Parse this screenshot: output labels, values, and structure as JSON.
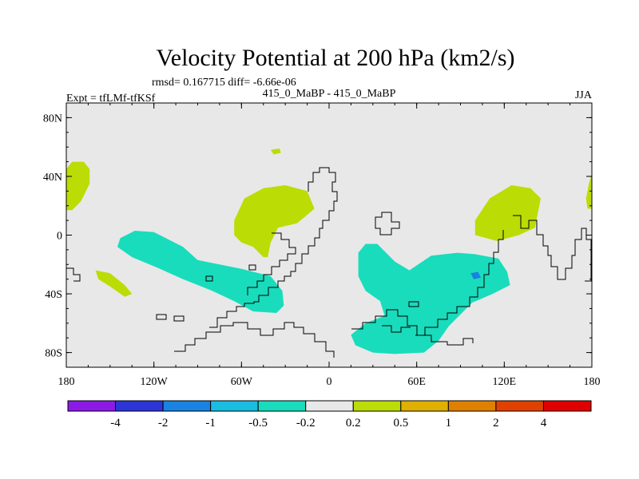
{
  "chart_data": {
    "type": "heatmap",
    "title": "Velocity Potential at 200 hPa (km2/s)",
    "stats": "rmsd= 0.167715  diff= -6.66e-06",
    "left_label": "Expt = tfLMf-tfKSf",
    "center_label": "415_0_MaBP - 415_0_MaBP",
    "right_label": "JJA",
    "x_range": [
      -180,
      180
    ],
    "y_range": [
      -90,
      90
    ],
    "x_ticks": [
      {
        "value": -180,
        "label": "180"
      },
      {
        "value": -120,
        "label": "120W"
      },
      {
        "value": -60,
        "label": "60W"
      },
      {
        "value": 0,
        "label": "0"
      },
      {
        "value": 60,
        "label": "60E"
      },
      {
        "value": 120,
        "label": "120E"
      },
      {
        "value": 180,
        "label": "180"
      }
    ],
    "y_ticks": [
      {
        "value": 80,
        "label": "80N"
      },
      {
        "value": 40,
        "label": "40N"
      },
      {
        "value": 0,
        "label": "0"
      },
      {
        "value": -40,
        "label": "40S"
      },
      {
        "value": -80,
        "label": "80S"
      }
    ],
    "background_color": "#e8e8e8",
    "colorbar": {
      "colors": [
        "#8b1ae6",
        "#2d34d8",
        "#1a82e0",
        "#19bde0",
        "#19dcbc",
        "#e8e8e8",
        "#bcdc06",
        "#e0b000",
        "#e08000",
        "#e04000",
        "#e00000"
      ],
      "labels": [
        "-4",
        "-2",
        "-1",
        "-0.5",
        "-0.2",
        "0.2",
        "0.5",
        "1",
        "2",
        "4"
      ]
    },
    "regions": [
      {
        "name": "positive-west-pacific",
        "level": "0.2 to 0.5",
        "color": "#bcdc06",
        "points": [
          [
            -180,
            45
          ],
          [
            -176,
            50
          ],
          [
            -168,
            50
          ],
          [
            -164,
            45
          ],
          [
            -164,
            35
          ],
          [
            -170,
            23
          ],
          [
            -176,
            17
          ],
          [
            -180,
            17
          ]
        ]
      },
      {
        "name": "positive-atlantic",
        "level": "0.2 to 0.5",
        "color": "#bcdc06",
        "points": [
          [
            -65,
            10
          ],
          [
            -58,
            25
          ],
          [
            -45,
            32
          ],
          [
            -30,
            34
          ],
          [
            -15,
            30
          ],
          [
            -10,
            18
          ],
          [
            -22,
            8
          ],
          [
            -35,
            5
          ],
          [
            -40,
            -5
          ],
          [
            -42,
            -15
          ],
          [
            -45,
            -15
          ],
          [
            -52,
            -8
          ],
          [
            -60,
            -5
          ],
          [
            -65,
            0
          ]
        ]
      },
      {
        "name": "positive-asia",
        "level": "0.2 to 0.5",
        "color": "#bcdc06",
        "points": [
          [
            100,
            10
          ],
          [
            110,
            25
          ],
          [
            125,
            34
          ],
          [
            138,
            32
          ],
          [
            145,
            25
          ],
          [
            141,
            5
          ],
          [
            130,
            0
          ],
          [
            115,
            -4
          ],
          [
            100,
            0
          ]
        ]
      },
      {
        "name": "positive-dateline",
        "level": "0.2 to 0.5",
        "color": "#bcdc06",
        "points": [
          [
            177,
            18
          ],
          [
            180,
            18
          ],
          [
            180,
            42
          ],
          [
            178,
            35
          ],
          [
            176,
            25
          ]
        ]
      },
      {
        "name": "positive-south-pacific",
        "level": "0.2 to 0.5",
        "color": "#bcdc06",
        "points": [
          [
            -160,
            -24
          ],
          [
            -150,
            -26
          ],
          [
            -140,
            -34
          ],
          [
            -135,
            -40
          ],
          [
            -140,
            -42
          ],
          [
            -150,
            -35
          ],
          [
            -158,
            -30
          ]
        ]
      },
      {
        "name": "positive-north-speck",
        "level": "0.2 to 0.5",
        "color": "#bcdc06",
        "points": [
          [
            -40,
            58
          ],
          [
            -34,
            59
          ],
          [
            -33,
            56
          ],
          [
            -38,
            55
          ]
        ]
      },
      {
        "name": "negative-america",
        "level": "-0.5 to -0.2",
        "color": "#19dcbc",
        "points": [
          [
            -143,
            -2
          ],
          [
            -133,
            3
          ],
          [
            -120,
            2
          ],
          [
            -100,
            -8
          ],
          [
            -90,
            -17
          ],
          [
            -75,
            -20
          ],
          [
            -60,
            -23
          ],
          [
            -40,
            -28
          ],
          [
            -32,
            -38
          ],
          [
            -31,
            -48
          ],
          [
            -36,
            -53
          ],
          [
            -52,
            -52
          ],
          [
            -65,
            -45
          ],
          [
            -80,
            -38
          ],
          [
            -100,
            -30
          ],
          [
            -118,
            -22
          ],
          [
            -135,
            -15
          ],
          [
            -145,
            -8
          ]
        ]
      },
      {
        "name": "negative-africa-indian",
        "level": "-0.5 to -0.2",
        "color": "#19dcbc",
        "points": [
          [
            20,
            -12
          ],
          [
            25,
            -6
          ],
          [
            33,
            -6
          ],
          [
            45,
            -18
          ],
          [
            55,
            -24
          ],
          [
            70,
            -14
          ],
          [
            88,
            -12
          ],
          [
            100,
            -13
          ],
          [
            116,
            -16
          ],
          [
            122,
            -25
          ],
          [
            124,
            -34
          ],
          [
            112,
            -40
          ],
          [
            98,
            -46
          ],
          [
            82,
            -62
          ],
          [
            75,
            -72
          ],
          [
            65,
            -80
          ],
          [
            45,
            -81
          ],
          [
            30,
            -80
          ],
          [
            18,
            -75
          ],
          [
            15,
            -68
          ],
          [
            25,
            -60
          ],
          [
            38,
            -55
          ],
          [
            35,
            -45
          ],
          [
            25,
            -38
          ],
          [
            20,
            -28
          ]
        ]
      },
      {
        "name": "negative-core",
        "level": "-1 to -0.5",
        "color": "#1a82e0",
        "points": [
          [
            97,
            -26
          ],
          [
            102,
            -25
          ],
          [
            104,
            -29
          ],
          [
            99,
            -30
          ]
        ]
      }
    ]
  }
}
